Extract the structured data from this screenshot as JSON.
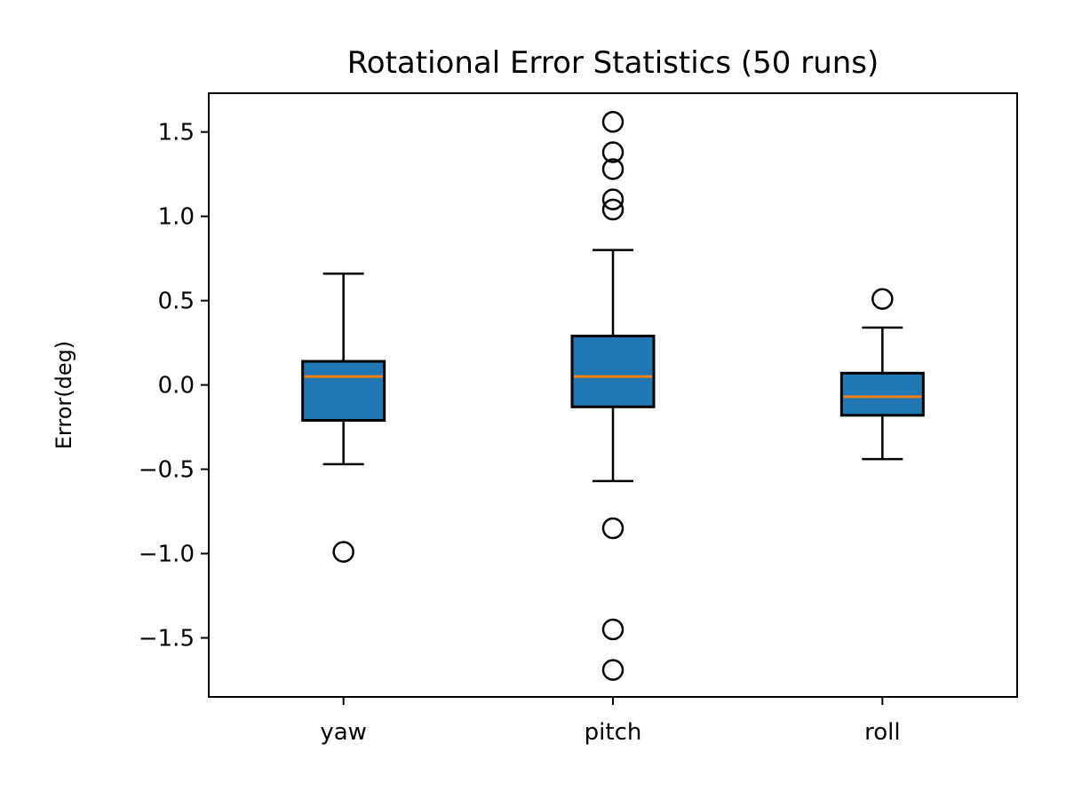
{
  "chart_data": {
    "type": "box",
    "title": "Rotational Error Statistics (50 runs)",
    "xlabel": "",
    "ylabel": "Error(deg)",
    "ylim": [
      -1.85,
      1.73
    ],
    "yticks": [
      -1.5,
      -1.0,
      -0.5,
      0.0,
      0.5,
      1.0,
      1.5
    ],
    "ytick_labels": [
      "−1.5",
      "−1.0",
      "−0.5",
      "0.0",
      "0.5",
      "1.0",
      "1.5"
    ],
    "categories": [
      "yaw",
      "pitch",
      "roll"
    ],
    "grid": false,
    "legend": "none",
    "box_color": "#1f77b4",
    "median_color": "#ff7f0e",
    "boxes": [
      {
        "label": "yaw",
        "whislo": -0.47,
        "q1": -0.21,
        "median": 0.05,
        "q3": 0.14,
        "whishi": 0.66,
        "fliers": [
          -0.99
        ]
      },
      {
        "label": "pitch",
        "whislo": -0.57,
        "q1": -0.13,
        "median": 0.05,
        "q3": 0.29,
        "whishi": 0.8,
        "fliers": [
          1.56,
          1.38,
          1.28,
          1.1,
          1.04,
          -0.85,
          -1.45,
          -1.69
        ]
      },
      {
        "label": "roll",
        "whislo": -0.44,
        "q1": -0.18,
        "median": -0.07,
        "q3": 0.07,
        "whishi": 0.34,
        "fliers": [
          0.51
        ]
      }
    ]
  }
}
